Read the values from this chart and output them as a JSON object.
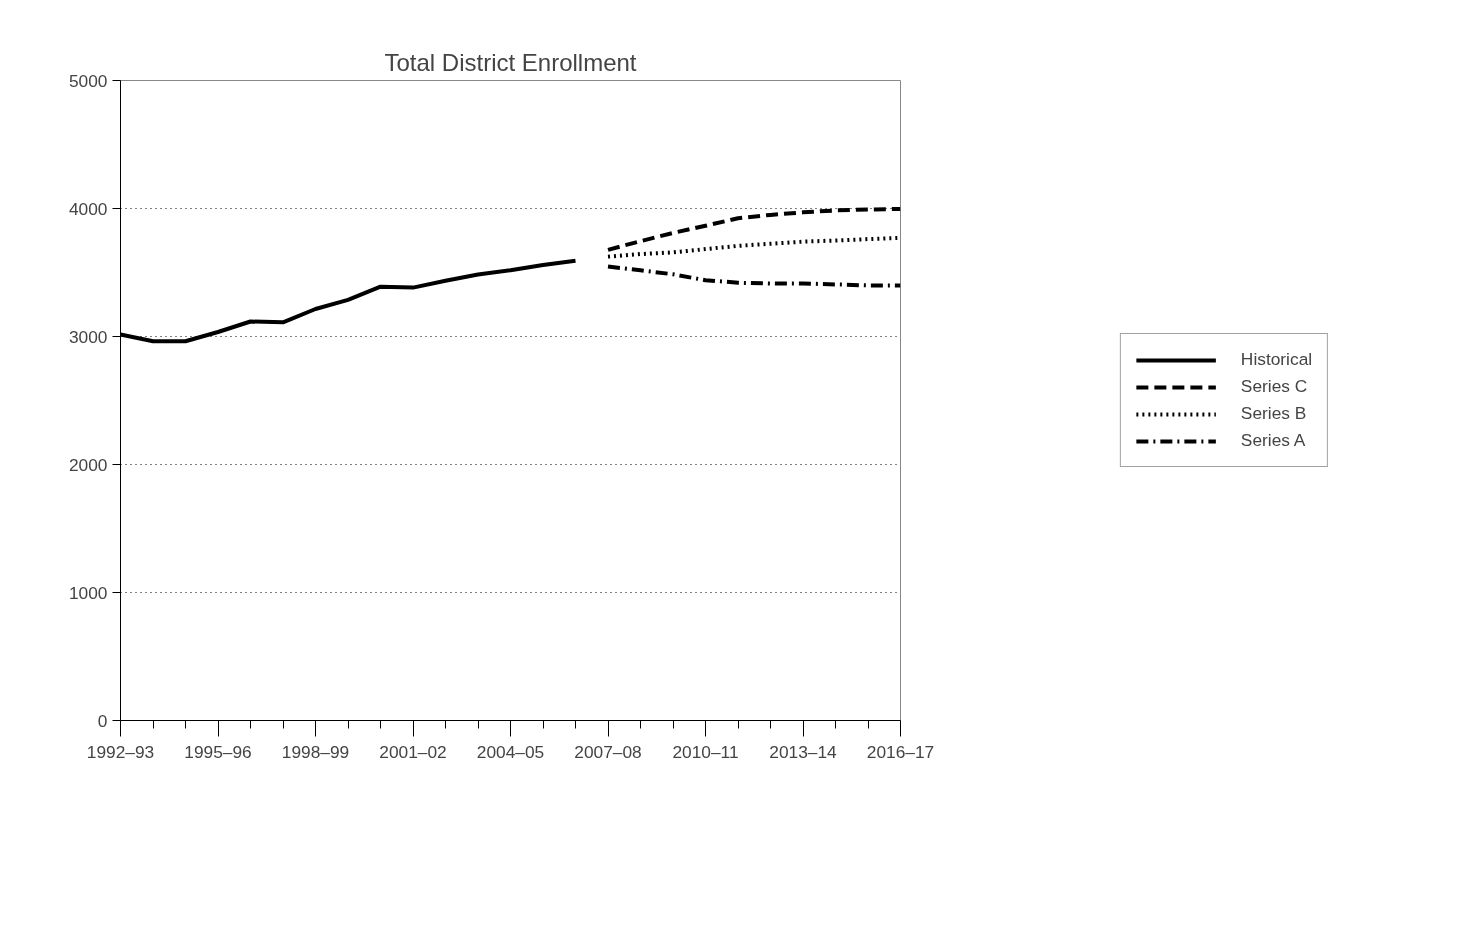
{
  "chart_data": {
    "type": "line",
    "title": "Total District Enrollment",
    "categories": [
      "1992–93",
      null,
      null,
      "1995–96",
      null,
      null,
      "1998–99",
      null,
      null,
      "2001–02",
      null,
      null,
      "2004–05",
      null,
      null,
      "2007–08",
      null,
      null,
      "2010–11",
      null,
      null,
      "2013–14",
      null,
      null,
      "2016–17"
    ],
    "series": [
      {
        "name": "Historical",
        "color": "#000000",
        "line_style": "solid",
        "values": [
          3015,
          2963,
          2963,
          3035,
          3117,
          3111,
          3215,
          3286,
          3389,
          3382,
          3435,
          3485,
          3518,
          3558,
          3591,
          null,
          null,
          null,
          null,
          null,
          null,
          null,
          null,
          null,
          null
        ]
      },
      {
        "name": "Series C",
        "color": "#000000",
        "line_style": "dashed",
        "values": [
          null,
          null,
          null,
          null,
          null,
          null,
          null,
          null,
          null,
          null,
          null,
          null,
          null,
          null,
          null,
          3677,
          3745,
          3809,
          3865,
          3924,
          3950,
          3970,
          3985,
          3992,
          3997
        ]
      },
      {
        "name": "Series B",
        "color": "#000000",
        "line_style": "dotted",
        "values": [
          null,
          null,
          null,
          null,
          null,
          null,
          null,
          null,
          null,
          null,
          null,
          null,
          null,
          null,
          null,
          3624,
          3644,
          3657,
          3683,
          3708,
          3725,
          3741,
          3750,
          3761,
          3771
        ]
      },
      {
        "name": "Series A",
        "color": "#000000",
        "line_style": "dashdot",
        "values": [
          null,
          null,
          null,
          null,
          null,
          null,
          null,
          null,
          null,
          null,
          null,
          null,
          null,
          null,
          null,
          3547,
          3517,
          3486,
          3440,
          3420,
          3414,
          3414,
          3407,
          3399,
          3399
        ]
      }
    ],
    "ylim": [
      0,
      5000
    ],
    "yticks": [
      0,
      1000,
      2000,
      3000,
      4000,
      5000
    ],
    "grid": "y",
    "legend": "right",
    "marker": "none"
  }
}
